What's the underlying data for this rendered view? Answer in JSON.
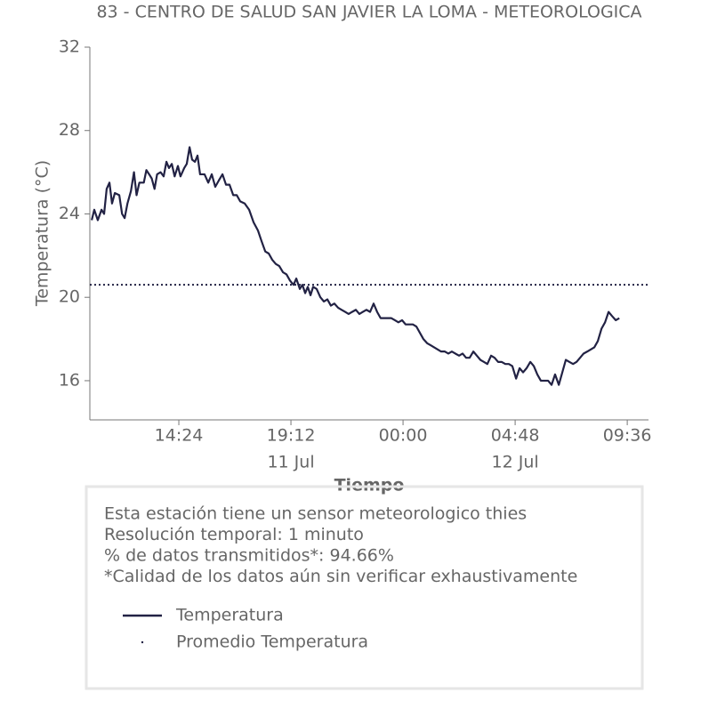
{
  "chart_data": {
    "type": "line",
    "title": "83 - CENTRO DE SALUD SAN JAVIER LA LOMA - METEOROLOGICA",
    "x_label": "Tiempo",
    "y_label": "Temperatura (°C)",
    "x": [
      10.67,
      10.78,
      10.93,
      11.09,
      11.2,
      11.31,
      11.43,
      11.54,
      11.66,
      11.85,
      11.97,
      12.08,
      12.2,
      12.35,
      12.48,
      12.59,
      12.71,
      12.9,
      13.01,
      13.13,
      13.24,
      13.36,
      13.47,
      13.62,
      13.75,
      13.87,
      13.98,
      14.1,
      14.22,
      14.36,
      14.47,
      14.63,
      14.74,
      14.86,
      14.97,
      15.09,
      15.2,
      15.31,
      15.5,
      15.66,
      15.81,
      15.96,
      16.11,
      16.27,
      16.42,
      16.57,
      16.73,
      16.88,
      17.03,
      17.22,
      17.41,
      17.6,
      17.79,
      17.94,
      18.1,
      18.25,
      18.4,
      18.55,
      18.7,
      18.86,
      19.01,
      19.16,
      19.31,
      19.43,
      19.58,
      19.69,
      19.81,
      19.92,
      20.04,
      20.15,
      20.3,
      20.46,
      20.61,
      20.76,
      20.91,
      21.06,
      21.22,
      21.37,
      21.52,
      21.67,
      21.82,
      21.98,
      22.13,
      22.28,
      22.43,
      22.59,
      22.74,
      22.89,
      23.04,
      23.2,
      23.35,
      23.5,
      23.65,
      23.8,
      23.96,
      24.11,
      24.26,
      24.42,
      24.57,
      24.72,
      24.87,
      25.03,
      25.18,
      25.33,
      25.48,
      25.63,
      25.79,
      25.94,
      26.09,
      26.24,
      26.4,
      26.55,
      26.7,
      26.85,
      27.01,
      27.16,
      27.31,
      27.46,
      27.61,
      27.77,
      27.92,
      28.07,
      28.22,
      28.38,
      28.53,
      28.68,
      28.84,
      28.99,
      29.14,
      29.29,
      29.45,
      29.6,
      29.75,
      29.9,
      30.06,
      30.21,
      30.36,
      30.51,
      30.67,
      30.82,
      30.97,
      31.12,
      31.28,
      31.43,
      31.58,
      31.73,
      31.89,
      32.04,
      32.19,
      32.34,
      32.5,
      32.65,
      32.8,
      32.95,
      33.11,
      33.26
    ],
    "series": [
      {
        "name": "Temperatura",
        "color": "#222244",
        "values": [
          23.7,
          24.2,
          23.7,
          24.2,
          24.0,
          25.2,
          25.5,
          24.5,
          25.0,
          24.9,
          24.0,
          23.8,
          24.5,
          25.1,
          26.0,
          24.9,
          25.5,
          25.5,
          26.1,
          25.9,
          25.7,
          25.2,
          25.9,
          26.0,
          25.8,
          26.5,
          26.2,
          26.4,
          25.8,
          26.3,
          25.8,
          26.2,
          26.4,
          27.2,
          26.6,
          26.5,
          26.8,
          25.9,
          25.9,
          25.5,
          25.9,
          25.3,
          25.6,
          25.9,
          25.4,
          25.4,
          24.9,
          24.9,
          24.6,
          24.5,
          24.2,
          23.6,
          23.2,
          22.7,
          22.2,
          22.1,
          21.8,
          21.6,
          21.5,
          21.2,
          21.1,
          20.8,
          20.6,
          20.9,
          20.4,
          20.6,
          20.2,
          20.5,
          20.1,
          20.5,
          20.4,
          20.0,
          19.8,
          19.9,
          19.6,
          19.7,
          19.5,
          19.4,
          19.3,
          19.2,
          19.3,
          19.4,
          19.2,
          19.3,
          19.4,
          19.3,
          19.7,
          19.3,
          19.0,
          19.0,
          19.0,
          19.0,
          18.9,
          18.8,
          18.9,
          18.7,
          18.7,
          18.7,
          18.6,
          18.3,
          18.0,
          17.8,
          17.7,
          17.6,
          17.5,
          17.4,
          17.4,
          17.3,
          17.4,
          17.3,
          17.2,
          17.3,
          17.1,
          17.1,
          17.4,
          17.2,
          17.0,
          16.9,
          16.8,
          17.2,
          17.1,
          16.9,
          16.9,
          16.8,
          16.8,
          16.7,
          16.1,
          16.6,
          16.4,
          16.6,
          16.9,
          16.7,
          16.3,
          16.0,
          16.0,
          16.0,
          15.8,
          16.3,
          15.8,
          16.4,
          17.0,
          16.9,
          16.8,
          16.9,
          17.1,
          17.3,
          17.4,
          17.5,
          17.6,
          17.9,
          18.5,
          18.8,
          19.3,
          19.1,
          18.9,
          19.0
        ]
      }
    ],
    "mean_line": {
      "name": "Promedio Temperatura",
      "value": 20.6,
      "color": "#222244"
    },
    "xlim": [
      10.59,
      34.51
    ],
    "xticks": [
      {
        "value": 14.4,
        "label": "14:24"
      },
      {
        "value": 19.2,
        "label": "19:12"
      },
      {
        "value": 24,
        "label": "00:00"
      },
      {
        "value": 28.8,
        "label": "04:48"
      },
      {
        "value": 33.6,
        "label": "09:36"
      }
    ],
    "x_date_labels": [
      {
        "value": 19.2,
        "label": "11 Jul"
      },
      {
        "value": 28.8,
        "label": "12 Jul"
      }
    ],
    "ylim": [
      14.12,
      32
    ],
    "yticks": [
      16,
      20,
      24,
      28,
      32
    ],
    "grid": false,
    "info_lines": [
      "Esta estación tiene un sensor meteorologico thies",
      "Resolución temporal: 1 minuto",
      "% de datos transmitidos*: 94.66%",
      "*Calidad de los datos aún sin verificar exhaustivamente"
    ]
  }
}
